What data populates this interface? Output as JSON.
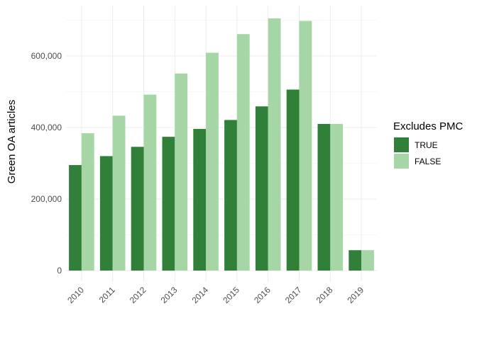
{
  "chart_data": {
    "type": "bar",
    "title": "",
    "xlabel": "",
    "ylabel": "Green OA articles",
    "categories": [
      "2010",
      "2011",
      "2012",
      "2013",
      "2014",
      "2015",
      "2016",
      "2017",
      "2018",
      "2019"
    ],
    "series": [
      {
        "name": "TRUE",
        "color": "#31803a",
        "values": [
          295000,
          320000,
          346000,
          374000,
          396000,
          421000,
          459000,
          506000,
          410000,
          57000
        ]
      },
      {
        "name": "FALSE",
        "color": "#a6d6a5",
        "values": [
          384000,
          433000,
          492000,
          551000,
          609000,
          661000,
          705000,
          698000,
          410000,
          57000
        ]
      }
    ],
    "ylim": [
      0,
      700000
    ],
    "yticks": [
      0,
      200000,
      400000,
      600000
    ],
    "ytick_labels": [
      "0",
      "200,000",
      "400,000",
      "600,000"
    ],
    "grid": true,
    "legend": {
      "title": "Excludes PMC",
      "placement": "right",
      "entries": [
        "TRUE",
        "FALSE"
      ]
    }
  }
}
